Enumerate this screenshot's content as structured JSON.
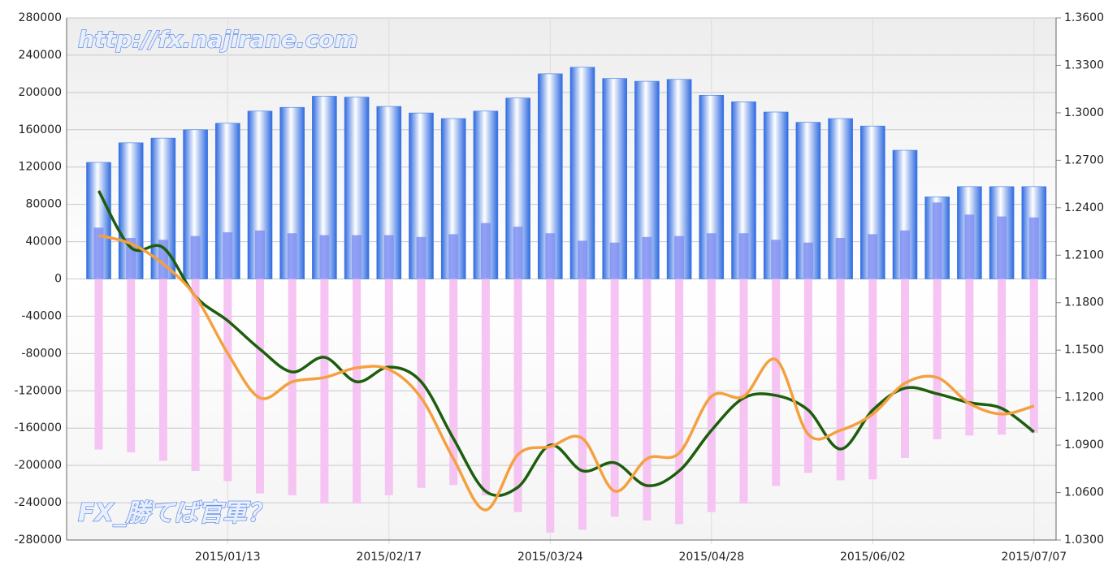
{
  "chart_data": {
    "type": "bar-line",
    "annotations": [
      "http://fx.najirane.com",
      "FX_勝てば官軍？"
    ],
    "categories": [
      null,
      null,
      null,
      null,
      "2015/01/13",
      null,
      null,
      null,
      null,
      "2015/02/17",
      null,
      null,
      null,
      null,
      "2015/03/24",
      null,
      null,
      null,
      null,
      "2015/04/28",
      null,
      null,
      null,
      null,
      "2015/06/02",
      null,
      null,
      null,
      null,
      "2015/07/07"
    ],
    "ylim": [
      -280000,
      280000
    ],
    "yticks": [
      -280000,
      -240000,
      -200000,
      -160000,
      -120000,
      -80000,
      -40000,
      0,
      40000,
      80000,
      120000,
      160000,
      200000,
      240000,
      280000
    ],
    "y2lim": [
      1.03,
      1.36
    ],
    "y2ticks": [
      {
        "value": 1.03,
        "label": "1.0300"
      },
      {
        "value": 1.06,
        "label": "1.0600"
      },
      {
        "value": 1.09,
        "label": "1.0900"
      },
      {
        "value": 1.12,
        "label": "1.1200"
      },
      {
        "value": 1.15,
        "label": "1.1500"
      },
      {
        "value": 1.18,
        "label": "1.1800"
      },
      {
        "value": 1.21,
        "label": "1.2100"
      },
      {
        "value": 1.24,
        "label": "1.2400"
      },
      {
        "value": 1.27,
        "label": "1.2700"
      },
      {
        "value": 1.3,
        "label": "1.3000"
      },
      {
        "value": 1.33,
        "label": "1.3300"
      },
      {
        "value": 1.36,
        "label": "1.3600"
      }
    ],
    "grid": true,
    "series": [
      {
        "kind": "bar",
        "color": "#3a78e8",
        "values": [
          125000,
          146000,
          151000,
          160000,
          167000,
          180000,
          184000,
          196000,
          195000,
          185000,
          178000,
          172000,
          180000,
          194000,
          220000,
          227000,
          215000,
          212000,
          214000,
          197000,
          190000,
          179000,
          168000,
          172000,
          164000,
          138000,
          88000,
          99000,
          99000,
          99000
        ]
      },
      {
        "kind": "bar",
        "color": "#7f8ff2",
        "values": [
          55000,
          44000,
          42000,
          46000,
          50000,
          52000,
          49000,
          47000,
          47000,
          47000,
          45000,
          48000,
          60000,
          56000,
          49000,
          41000,
          39000,
          45000,
          46000,
          49000,
          49000,
          42000,
          39000,
          44000,
          48000,
          52000,
          82000,
          69000,
          67000,
          66000
        ]
      },
      {
        "kind": "bar",
        "color": "#f5c4f2",
        "values": [
          -183000,
          -186000,
          -195000,
          -206000,
          -217000,
          -230000,
          -232000,
          -241000,
          -241000,
          -232000,
          -224000,
          -221000,
          -232000,
          -250000,
          -272000,
          -269000,
          -255000,
          -259000,
          -263000,
          -250000,
          -241000,
          -222000,
          -208000,
          -216000,
          -215000,
          -192000,
          -172000,
          -168000,
          -167000,
          -165000
        ]
      },
      {
        "kind": "line",
        "axis": "y2",
        "color": "#1c5e0c",
        "values": [
          1.2507,
          1.2148,
          1.2148,
          1.184,
          1.1686,
          1.1506,
          1.1362,
          1.1455,
          1.13,
          1.1393,
          1.13,
          1.0941,
          1.0608,
          1.0634,
          1.09,
          1.0737,
          1.0788,
          1.0644,
          1.0737,
          1.0993,
          1.1198,
          1.1214,
          1.1121,
          1.0875,
          1.1121,
          1.126,
          1.1224,
          1.1168,
          1.1132,
          1.0983
        ]
      },
      {
        "kind": "line",
        "axis": "y2",
        "color": "#f5a040",
        "values": [
          1.2225,
          1.2173,
          1.2045,
          1.184,
          1.148,
          1.1198,
          1.13,
          1.1327,
          1.1388,
          1.1378,
          1.1198,
          1.0814,
          1.049,
          1.084,
          1.089,
          1.0942,
          1.0609,
          1.0814,
          1.085,
          1.1208,
          1.1208,
          1.144,
          1.0968,
          1.0994,
          1.1096,
          1.1291,
          1.1327,
          1.1163,
          1.1096,
          1.1147
        ]
      }
    ]
  }
}
